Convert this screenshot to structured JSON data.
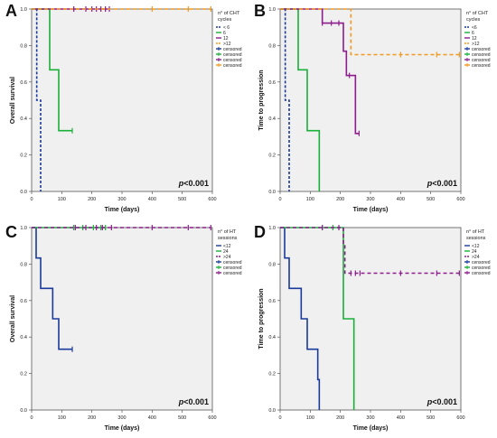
{
  "chart_data": [
    {
      "panel": "A",
      "type": "line",
      "ylabel": "Overall survival",
      "xlabel": "Time (days)",
      "xlim": [
        0,
        600
      ],
      "ylim": [
        0,
        1.0
      ],
      "xticks": [
        0,
        100,
        200,
        300,
        400,
        500,
        600
      ],
      "yticks": [
        0.0,
        0.2,
        0.4,
        0.6,
        0.8,
        1.0
      ],
      "pvalue_prefix": "p",
      "pvalue_rest": "<0.001",
      "legend_title": "n° of CHT cycles",
      "legend_position": "right",
      "series": [
        {
          "name": "< 6",
          "color": "#1a3a9c",
          "dash": "3,2",
          "steps": [
            [
              0,
              1.0
            ],
            [
              17,
              0.5
            ],
            [
              30,
              0.0
            ]
          ],
          "censors": []
        },
        {
          "name": "6",
          "color": "#19b03a",
          "dash": "",
          "steps": [
            [
              0,
              1.0
            ],
            [
              60,
              0.667
            ],
            [
              90,
              0.333
            ],
            [
              135,
              0.333
            ]
          ],
          "censors": [
            135
          ]
        },
        {
          "name": "12",
          "color": "#8c1d8c",
          "dash": "",
          "steps": [
            [
              0,
              1.0
            ],
            [
              260,
              1.0
            ]
          ],
          "censors": [
            140,
            180,
            200,
            215,
            230,
            245,
            258
          ]
        },
        {
          "name": ">12",
          "color": "#f39a1c",
          "dash": "4,3",
          "steps": [
            [
              0,
              1.0
            ],
            [
              595,
              1.0
            ]
          ],
          "censors": [
            400,
            520,
            595
          ]
        }
      ],
      "legend": [
        "< 6",
        "6",
        "12",
        ">12",
        "censored",
        "censored",
        "censored",
        "censored"
      ]
    },
    {
      "panel": "B",
      "type": "line",
      "ylabel": "Time to progression",
      "xlabel": "Time (days)",
      "xlim": [
        0,
        600
      ],
      "ylim": [
        0,
        1.0
      ],
      "xticks": [
        0,
        100,
        200,
        300,
        400,
        500,
        600
      ],
      "yticks": [
        0.0,
        0.2,
        0.4,
        0.6,
        0.8,
        1.0
      ],
      "pvalue_prefix": "p",
      "pvalue_rest": "<0.001",
      "legend_title": "n° of CHT cycles",
      "legend_position": "right",
      "series": [
        {
          "name": "<6",
          "color": "#1a3a9c",
          "dash": "3,2",
          "steps": [
            [
              0,
              1.0
            ],
            [
              17,
              0.5
            ],
            [
              30,
              0.0
            ]
          ],
          "censors": []
        },
        {
          "name": "6",
          "color": "#19b03a",
          "dash": "",
          "steps": [
            [
              0,
              1.0
            ],
            [
              60,
              0.667
            ],
            [
              90,
              0.333
            ],
            [
              130,
              0.0
            ]
          ],
          "censors": []
        },
        {
          "name": "12",
          "color": "#8c1d8c",
          "dash": "",
          "steps": [
            [
              0,
              1.0
            ],
            [
              140,
              0.923
            ],
            [
              210,
              0.769
            ],
            [
              220,
              0.636
            ],
            [
              250,
              0.318
            ],
            [
              262,
              0.318
            ]
          ],
          "censors": [
            140,
            170,
            195,
            230,
            262
          ]
        },
        {
          "name": ">12",
          "color": "#f39a1c",
          "dash": "4,3",
          "steps": [
            [
              0,
              1.0
            ],
            [
              225,
              1.0
            ],
            [
              235,
              0.75
            ],
            [
              595,
              0.75
            ]
          ],
          "censors": [
            400,
            520,
            595
          ]
        }
      ],
      "legend": [
        "<6",
        "6",
        "12",
        ">12",
        "censored",
        "censored",
        "censored",
        "censored"
      ]
    },
    {
      "panel": "C",
      "type": "line",
      "ylabel": "Overall survival",
      "xlabel": "Time (days)",
      "xlim": [
        0,
        600
      ],
      "ylim": [
        0,
        1.0
      ],
      "xticks": [
        0,
        100,
        200,
        300,
        400,
        500,
        600
      ],
      "yticks": [
        0.0,
        0.2,
        0.4,
        0.6,
        0.8,
        1.0
      ],
      "pvalue_prefix": "p",
      "pvalue_rest": "<0.001",
      "legend_title": "n° of HT sessions",
      "legend_position": "right",
      "series": [
        {
          "name": "<12",
          "color": "#1a3a9c",
          "dash": "",
          "steps": [
            [
              0,
              1.0
            ],
            [
              15,
              0.833
            ],
            [
              30,
              0.667
            ],
            [
              70,
              0.5
            ],
            [
              90,
              0.333
            ],
            [
              135,
              0.333
            ]
          ],
          "censors": [
            135
          ]
        },
        {
          "name": "24",
          "color": "#19b03a",
          "dash": "",
          "steps": [
            [
              0,
              1.0
            ],
            [
              245,
              1.0
            ]
          ],
          "censors": [
            140,
            170,
            205,
            230,
            245
          ]
        },
        {
          "name": ">24",
          "color": "#8c1d8c",
          "dash": "4,3",
          "steps": [
            [
              0,
              1.0
            ],
            [
              595,
              1.0
            ]
          ],
          "censors": [
            145,
            180,
            215,
            235,
            265,
            400,
            520,
            595
          ]
        }
      ],
      "legend": [
        "<12",
        "24",
        ">24",
        "censored",
        "censored",
        "censored"
      ]
    },
    {
      "panel": "D",
      "type": "line",
      "ylabel": "Time to progression",
      "xlabel": "Time (days)",
      "xlim": [
        0,
        600
      ],
      "ylim": [
        0,
        1.0
      ],
      "xticks": [
        0,
        100,
        200,
        300,
        400,
        500,
        600
      ],
      "yticks": [
        0.0,
        0.2,
        0.4,
        0.6,
        0.8,
        1.0
      ],
      "pvalue_prefix": "p",
      "pvalue_rest": "<0.001",
      "legend_title": "n° of HT sessions",
      "legend_position": "right",
      "series": [
        {
          "name": "<12",
          "color": "#1a3a9c",
          "dash": "",
          "steps": [
            [
              0,
              1.0
            ],
            [
              15,
              0.833
            ],
            [
              30,
              0.667
            ],
            [
              70,
              0.5
            ],
            [
              90,
              0.333
            ],
            [
              125,
              0.167
            ],
            [
              130,
              0.0
            ]
          ],
          "censors": []
        },
        {
          "name": "24",
          "color": "#19b03a",
          "dash": "",
          "steps": [
            [
              0,
              1.0
            ],
            [
              205,
              1.0
            ],
            [
              210,
              0.5
            ],
            [
              245,
              0.0
            ]
          ],
          "censors": [
            140,
            175
          ]
        },
        {
          "name": ">24",
          "color": "#8c1d8c",
          "dash": "4,3",
          "steps": [
            [
              0,
              1.0
            ],
            [
              200,
              1.0
            ],
            [
              210,
              0.9
            ],
            [
              215,
              0.75
            ],
            [
              595,
              0.75
            ]
          ],
          "censors": [
            140,
            195,
            235,
            250,
            265,
            400,
            520,
            595
          ]
        }
      ],
      "legend": [
        "<12",
        "24",
        ">24",
        "censored",
        "censored",
        "censored"
      ]
    }
  ]
}
